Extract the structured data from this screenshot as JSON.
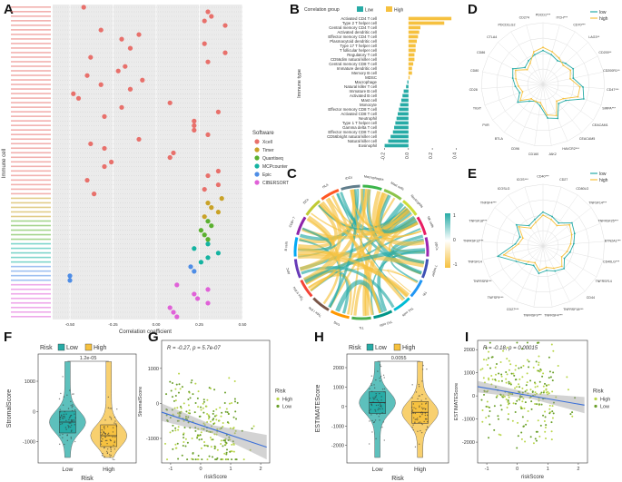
{
  "figure": {
    "panels": {
      "A": "A",
      "B": "B",
      "C": "C",
      "D": "D",
      "E": "E",
      "F": "F",
      "G": "G",
      "H": "H",
      "I": "I"
    }
  },
  "chart_data": [
    {
      "id": "A",
      "type": "scatter",
      "xlabel": "Correlation coefficient",
      "ylabel": "Immune cell",
      "xlim": [
        -0.6,
        0.5
      ],
      "xticks": [
        -0.5,
        -0.25,
        0.0,
        0.25,
        0.5
      ],
      "xtick_labels": [
        "-0.50",
        "-0.25",
        "0.00",
        "0.25",
        "0.50"
      ],
      "legend_title": "Software",
      "legend": [
        {
          "name": "Xcell",
          "color": "#e8706b"
        },
        {
          "name": "Timer",
          "color": "#c9a227"
        },
        {
          "name": "Quantiseq",
          "color": "#5ab02f"
        },
        {
          "name": "MCPcounter",
          "color": "#14b3a1"
        },
        {
          "name": "Epic",
          "color": "#4e8de6"
        },
        {
          "name": "CIBERSORT",
          "color": "#e061d8"
        }
      ],
      "points": [
        {
          "software": "Xcell",
          "value": -0.42
        },
        {
          "software": "Xcell",
          "value": 0.3
        },
        {
          "software": "Xcell",
          "value": 0.32
        },
        {
          "software": "Xcell",
          "value": 0.28
        },
        {
          "software": "Xcell",
          "value": 0.4
        },
        {
          "software": "Xcell",
          "value": -0.32
        },
        {
          "software": "Xcell",
          "value": -0.1
        },
        {
          "software": "Xcell",
          "value": -0.2
        },
        {
          "software": "Xcell",
          "value": 0.28
        },
        {
          "software": "Xcell",
          "value": -0.15
        },
        {
          "software": "Xcell",
          "value": 0.4
        },
        {
          "software": "Xcell",
          "value": -0.38
        },
        {
          "software": "Xcell",
          "value": 0.3
        },
        {
          "software": "Xcell",
          "value": -0.18
        },
        {
          "software": "Xcell",
          "value": -0.22
        },
        {
          "software": "Xcell",
          "value": -0.4
        },
        {
          "software": "Xcell",
          "value": -0.08
        },
        {
          "software": "Xcell",
          "value": -0.32
        },
        {
          "software": "Xcell",
          "value": -0.15
        },
        {
          "software": "Xcell",
          "value": -0.48
        },
        {
          "software": "Xcell",
          "value": -0.45
        },
        {
          "software": "Xcell",
          "value": 0.08
        },
        {
          "software": "Xcell",
          "value": -0.2
        },
        {
          "software": "Xcell",
          "value": 0.36
        },
        {
          "software": "Xcell",
          "value": -0.3
        },
        {
          "software": "Xcell",
          "value": 0.22
        },
        {
          "software": "Xcell",
          "value": 0.22
        },
        {
          "software": "Xcell",
          "value": 0.22
        },
        {
          "software": "Xcell",
          "value": 0.3
        },
        {
          "software": "Xcell",
          "value": -0.1
        },
        {
          "software": "Xcell",
          "value": -0.38
        },
        {
          "software": "Xcell",
          "value": -0.3
        },
        {
          "software": "Xcell",
          "value": 0.1
        },
        {
          "software": "Xcell",
          "value": 0.08
        },
        {
          "software": "Xcell",
          "value": -0.26
        },
        {
          "software": "Xcell",
          "value": -0.3
        },
        {
          "software": "Xcell",
          "value": 0.36
        },
        {
          "software": "Xcell",
          "value": 0.3
        },
        {
          "software": "Xcell",
          "value": -0.4
        },
        {
          "software": "Xcell",
          "value": 0.36
        },
        {
          "software": "Xcell",
          "value": 0.28
        },
        {
          "software": "Xcell",
          "value": -0.36
        },
        {
          "software": "Timer",
          "value": 0.38
        },
        {
          "software": "Timer",
          "value": 0.3
        },
        {
          "software": "Timer",
          "value": 0.32
        },
        {
          "software": "Timer",
          "value": 0.36
        },
        {
          "software": "Timer",
          "value": 0.28
        },
        {
          "software": "Quantiseq",
          "value": 0.3
        },
        {
          "software": "Quantiseq",
          "value": 0.32
        },
        {
          "software": "Quantiseq",
          "value": 0.26
        },
        {
          "software": "Quantiseq",
          "value": 0.28
        },
        {
          "software": "Quantiseq",
          "value": 0.3
        },
        {
          "software": "MCPcounter",
          "value": 0.3
        },
        {
          "software": "MCPcounter",
          "value": 0.22
        },
        {
          "software": "MCPcounter",
          "value": 0.36
        },
        {
          "software": "MCPcounter",
          "value": 0.3
        },
        {
          "software": "MCPcounter",
          "value": 0.26
        },
        {
          "software": "Epic",
          "value": 0.2
        },
        {
          "software": "Epic",
          "value": 0.22
        },
        {
          "software": "Epic",
          "value": -0.5
        },
        {
          "software": "Epic",
          "value": -0.5
        },
        {
          "software": "CIBERSORT",
          "value": 0.12
        },
        {
          "software": "CIBERSORT",
          "value": 0.3
        },
        {
          "software": "CIBERSORT",
          "value": 0.22
        },
        {
          "software": "CIBERSORT",
          "value": 0.24
        },
        {
          "software": "CIBERSORT",
          "value": 0.3
        },
        {
          "software": "CIBERSORT",
          "value": 0.08
        },
        {
          "software": "CIBERSORT",
          "value": 0.1
        },
        {
          "software": "CIBERSORT",
          "value": 0.12
        }
      ]
    },
    {
      "id": "B",
      "type": "bar",
      "orientation": "horizontal",
      "ylabel": "Immune type",
      "legend_title": "Correlation group",
      "legend": [
        {
          "name": "Low",
          "color": "#27aba6"
        },
        {
          "name": "High",
          "color": "#f6c13f"
        }
      ],
      "xlim": [
        -0.25,
        0.42
      ],
      "xticks": [
        -0.2,
        0.0,
        0.2,
        0.4
      ],
      "xtick_labels": [
        "-0.2",
        "0.0",
        "0.2",
        "0.4"
      ],
      "categories": [
        "Activated CD4 T cell",
        "Type 2 T helper cell",
        "Central memory CD4 T cell",
        "Activated dendritic cell",
        "Effector memory CD4 T cell",
        "Plasmacytoid dendritic cell",
        "Type 17 T helper cell",
        "T follicular helper cell",
        "Regulatory T cell",
        "CD56dim natural killer cell",
        "Central memory CD8 T cell",
        "Immature dendritic cell",
        "Memory B cell",
        "MDSC",
        "Macrophage",
        "Natural killer T cell",
        "Immature B cell",
        "Activated B cell",
        "Mast cell",
        "Monocyte",
        "Effector memory CD8 T cell",
        "Activated CD8 T cell",
        "Neutrophil",
        "Type 1 T helper cell",
        "Gamma delta T cell",
        "Effector memory CD8 T cell",
        "CD56bright natural killer cell",
        "Natural killer cell",
        "Eosinophil"
      ],
      "values": [
        0.36,
        0.3,
        0.1,
        0.09,
        0.08,
        0.07,
        0.06,
        0.06,
        0.05,
        0.05,
        0.04,
        0.03,
        0.03,
        0.01,
        -0.01,
        -0.02,
        -0.04,
        -0.05,
        -0.06,
        -0.07,
        -0.08,
        -0.09,
        -0.1,
        -0.11,
        -0.12,
        -0.13,
        -0.15,
        -0.17,
        -0.2
      ]
    },
    {
      "id": "C",
      "type": "other",
      "description_kind": "chord",
      "colorbar_ticks": [
        "1",
        "0",
        "-1"
      ],
      "legend_colors": {
        "high": "#27aba6",
        "low": "#f6c13f"
      },
      "sectors": [
        "Macrophages",
        "Mast cells",
        "Neutrophils",
        "NK cells",
        "pDCs",
        "T helper",
        "Tfh",
        "Th1 cells",
        "Th2 cells",
        "TIL",
        "Treg",
        "Type I IFN",
        "Type II IFN",
        "APC",
        "B cells",
        "CD8+ T",
        "DCs",
        "HLA",
        "iDCs"
      ]
    },
    {
      "id": "D",
      "type": "other",
      "description_kind": "radar",
      "legend": [
        {
          "name": "low",
          "color": "#27aba6"
        },
        {
          "name": "high",
          "color": "#f6c13f"
        }
      ],
      "axes": [
        "PDCD1***",
        "ITCH***",
        "CD70***",
        "LAG3**",
        "CD200**",
        "CD200R1**",
        "CD47***",
        "SIRPA***",
        "CEACAM1",
        "CEACAM5",
        "HAVCR2***",
        "JAK2",
        "CD160",
        "CD96",
        "BTLA",
        "PVR",
        "TIGIT",
        "CD28",
        "CD80",
        "CD86",
        "CTLA4",
        "PDCD1LG2",
        "CD274"
      ],
      "series": [
        {
          "name": "low",
          "values": [
            0.55,
            0.5,
            0.45,
            0.5,
            0.55,
            0.5,
            0.65,
            0.7,
            0.45,
            0.4,
            0.6,
            0.55,
            0.35,
            0.3,
            0.35,
            0.5,
            0.4,
            0.45,
            0.5,
            0.55,
            0.4,
            0.45,
            0.5
          ]
        },
        {
          "name": "high",
          "values": [
            0.6,
            0.55,
            0.5,
            0.45,
            0.5,
            0.45,
            0.6,
            0.6,
            0.4,
            0.35,
            0.55,
            0.5,
            0.3,
            0.3,
            0.3,
            0.45,
            0.35,
            0.4,
            0.45,
            0.5,
            0.35,
            0.4,
            0.55
          ]
        }
      ]
    },
    {
      "id": "E",
      "type": "other",
      "description_kind": "radar",
      "legend": [
        {
          "name": "low",
          "color": "#27aba6"
        },
        {
          "name": "high",
          "color": "#f6c13f"
        }
      ],
      "axes": [
        "CD40***",
        "CD27",
        "CD80LG",
        "TNFSF14***",
        "TNFRSF25***",
        "BTN2A1***",
        "CD40LG***",
        "TNFRSF14",
        "CD44",
        "TNFRSF18***",
        "TNFRSF4***",
        "TNFRSF9***",
        "CD27***",
        "TNFSF9***",
        "TNFRSF8***",
        "TNFSF14",
        "TNFRSF12***",
        "TNFSF18***",
        "TNFSF4***",
        "ICOSLG",
        "ICOS***"
      ],
      "series": [
        {
          "name": "low",
          "values": [
            0.55,
            0.5,
            0.45,
            0.6,
            0.55,
            0.5,
            0.45,
            0.4,
            0.5,
            0.45,
            0.4,
            0.45,
            0.35,
            0.4,
            0.5,
            0.75,
            0.45,
            0.4,
            0.55,
            0.4,
            0.45
          ]
        },
        {
          "name": "high",
          "values": [
            0.5,
            0.45,
            0.4,
            0.55,
            0.5,
            0.45,
            0.4,
            0.35,
            0.45,
            0.4,
            0.35,
            0.4,
            0.3,
            0.35,
            0.45,
            0.65,
            0.4,
            0.35,
            0.5,
            0.35,
            0.4
          ]
        }
      ]
    },
    {
      "id": "F",
      "type": "other",
      "description_kind": "violin",
      "legend_title": "Risk",
      "legend": [
        {
          "name": "Low",
          "color": "#27aba6"
        },
        {
          "name": "High",
          "color": "#f6c13f"
        }
      ],
      "ylabel": "StromalScore",
      "xlabel": "Risk",
      "categories": [
        "Low",
        "High"
      ],
      "yticks": [
        -1000,
        0,
        1000
      ],
      "ylim": [
        -1700,
        1900
      ],
      "pvalue": "1.2e-05",
      "medians": [
        -350,
        -800
      ]
    },
    {
      "id": "G",
      "type": "scatter",
      "annotation": "R = -0.27, p = 5.7e-07",
      "ylabel": "StromalScore",
      "xlabel": "riskScore",
      "xticks": [
        -1,
        0,
        1,
        2
      ],
      "yticks": [
        -1000,
        0,
        1000
      ],
      "xlim": [
        -1.3,
        2.3
      ],
      "ylim": [
        -1700,
        1800
      ],
      "legend_title": "Risk",
      "legend": [
        {
          "name": "High",
          "color": "#b9d64a"
        },
        {
          "name": "Low",
          "color": "#6a9f2a"
        }
      ],
      "fit_line": {
        "x": [
          -1.3,
          2.2
        ],
        "y": [
          -250,
          -1250
        ]
      }
    },
    {
      "id": "H",
      "type": "other",
      "description_kind": "violin",
      "legend_title": "Risk",
      "legend": [
        {
          "name": "Low",
          "color": "#27aba6"
        },
        {
          "name": "High",
          "color": "#f6c13f"
        }
      ],
      "ylabel": "ESTIMATEScore",
      "xlabel": "Risk",
      "categories": [
        "Low",
        "High"
      ],
      "yticks": [
        -2000,
        -1000,
        0,
        1000,
        2000
      ],
      "ylim": [
        -2900,
        2700
      ],
      "pvalue": "0.0055",
      "medians": [
        200,
        -300
      ]
    },
    {
      "id": "I",
      "type": "scatter",
      "annotation": "R = -0.18, p = 0.00015",
      "ylabel": "ESTIMATEScore",
      "xlabel": "riskScore",
      "xticks": [
        -1,
        0,
        1,
        2
      ],
      "yticks": [
        -2000,
        -1000,
        0,
        1000,
        2000
      ],
      "xlim": [
        -1.3,
        2.3
      ],
      "ylim": [
        -2900,
        2400
      ],
      "legend_title": "Risk",
      "legend": [
        {
          "name": "High",
          "color": "#b9d64a"
        },
        {
          "name": "Low",
          "color": "#6a9f2a"
        }
      ],
      "fit_line": {
        "x": [
          -1.3,
          2.2
        ],
        "y": [
          400,
          -400
        ]
      }
    }
  ]
}
